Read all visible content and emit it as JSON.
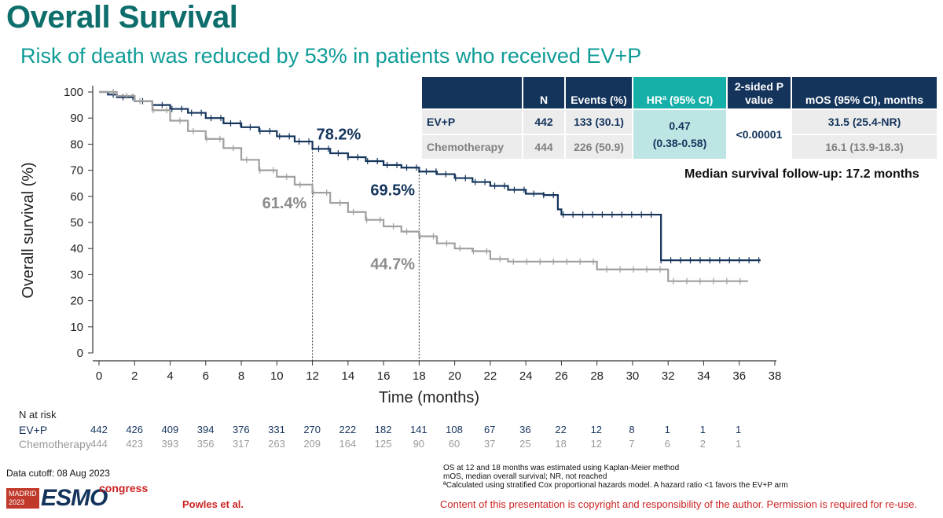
{
  "title": "Overall Survival",
  "subtitle": "Risk of death was reduced by 53% in patients who received EV+P",
  "table": {
    "headers": [
      "",
      "N",
      "Events (%)",
      "HRª (95% CI)",
      "2-sided P value",
      "mOS (95% CI), months"
    ],
    "rows": [
      {
        "arm": "EV+P",
        "n": "442",
        "events": "133 (30.1)",
        "mos": "31.5 (25.4-NR)"
      },
      {
        "arm": "Chemotherapy",
        "n": "444",
        "events": "226 (50.9)",
        "mos": "16.1 (13.9-18.3)"
      }
    ],
    "hr": "0.47",
    "ci": "(0.38-0.58)",
    "p": "<0.00001"
  },
  "follow_up": "Median survival follow-up: 17.2 months",
  "chart_data": {
    "type": "line",
    "xlabel": "Time (months)",
    "ylabel": "Overall survival (%)",
    "xlim": [
      0,
      38
    ],
    "ylim": [
      0,
      100
    ],
    "xticks": [
      0,
      2,
      4,
      6,
      8,
      10,
      12,
      14,
      16,
      18,
      20,
      22,
      24,
      26,
      28,
      30,
      32,
      34,
      36,
      38
    ],
    "yticks": [
      0,
      10,
      20,
      30,
      40,
      50,
      60,
      70,
      80,
      90,
      100
    ],
    "colors": {
      "evp": "#14345c",
      "chemo": "#a0a0a0"
    },
    "series": [
      {
        "name": "EV+P",
        "x": [
          0,
          0.5,
          1,
          2,
          3,
          4,
          5,
          6,
          7,
          8,
          9,
          10,
          11,
          12,
          13,
          14,
          15,
          16,
          17,
          18,
          19,
          20,
          21,
          22,
          23,
          24,
          25,
          25.8,
          26,
          27,
          28,
          29,
          30,
          31,
          31.5,
          31.6,
          32,
          34,
          36,
          37.2
        ],
        "y": [
          100,
          99,
          98,
          96.5,
          95,
          93.5,
          92,
          90,
          88,
          86.5,
          85,
          83,
          81,
          78.2,
          76.5,
          75,
          73.5,
          72,
          71,
          69.5,
          68.5,
          67,
          65.5,
          64,
          62.5,
          61,
          60.5,
          55,
          53,
          53,
          53,
          53,
          53,
          53,
          53,
          35.5,
          35.5,
          35.5,
          35.5,
          35.5
        ]
      },
      {
        "name": "Chemotherapy",
        "x": [
          0,
          1,
          2,
          3,
          4,
          5,
          6,
          7,
          8,
          9,
          10,
          11,
          12,
          13,
          14,
          15,
          16,
          17,
          18,
          19,
          20,
          21,
          22,
          23,
          24,
          26,
          28,
          30,
          31.5,
          32,
          34,
          36.5
        ],
        "y": [
          100,
          98.5,
          96.5,
          93,
          89,
          85,
          82,
          78.5,
          74,
          70,
          67.5,
          64.5,
          61.4,
          57.5,
          54,
          51,
          48.5,
          46.5,
          44.7,
          42,
          40,
          39,
          36,
          35,
          35,
          35,
          32,
          32,
          32,
          27.5,
          27.5,
          27.5
        ]
      }
    ],
    "annotations": [
      {
        "text": "78.2%",
        "series": "EV+P",
        "x": 12,
        "y": 78.2
      },
      {
        "text": "69.5%",
        "series": "EV+P",
        "x": 18,
        "y": 69.5
      },
      {
        "text": "61.4%",
        "series": "Chemotherapy",
        "x": 12,
        "y": 61.4
      },
      {
        "text": "44.7%",
        "series": "Chemotherapy",
        "x": 18,
        "y": 44.7
      }
    ],
    "reference_lines_x": [
      12,
      18
    ]
  },
  "risk": {
    "header": "N at risk",
    "rows": [
      {
        "label": "EV+P",
        "values": [
          442,
          426,
          409,
          394,
          376,
          331,
          270,
          222,
          182,
          141,
          108,
          67,
          36,
          22,
          12,
          8,
          1,
          1,
          1
        ]
      },
      {
        "label": "Chemotherapy",
        "values": [
          444,
          423,
          393,
          356,
          317,
          263,
          209,
          164,
          125,
          90,
          60,
          37,
          25,
          18,
          12,
          7,
          6,
          2,
          1
        ]
      }
    ]
  },
  "footnotes": {
    "cutoff": "Data cutoff: 08 Aug 2023",
    "lines": [
      "OS at 12 and 18 months was estimated using Kaplan-Meier method",
      "mOS, median overall survival; NR, not reached",
      "ªCalculated using stratified Cox proportional hazards model. A hazard ratio <1 favors the EV+P arm"
    ],
    "copyright": "Content of this presentation is copyright and responsibility of the author. Permission is required for re-use.",
    "author": "Powles et al."
  },
  "logo": {
    "city": "MADRID",
    "year": "2023",
    "brand": "ESMO",
    "suffix": "congress"
  }
}
